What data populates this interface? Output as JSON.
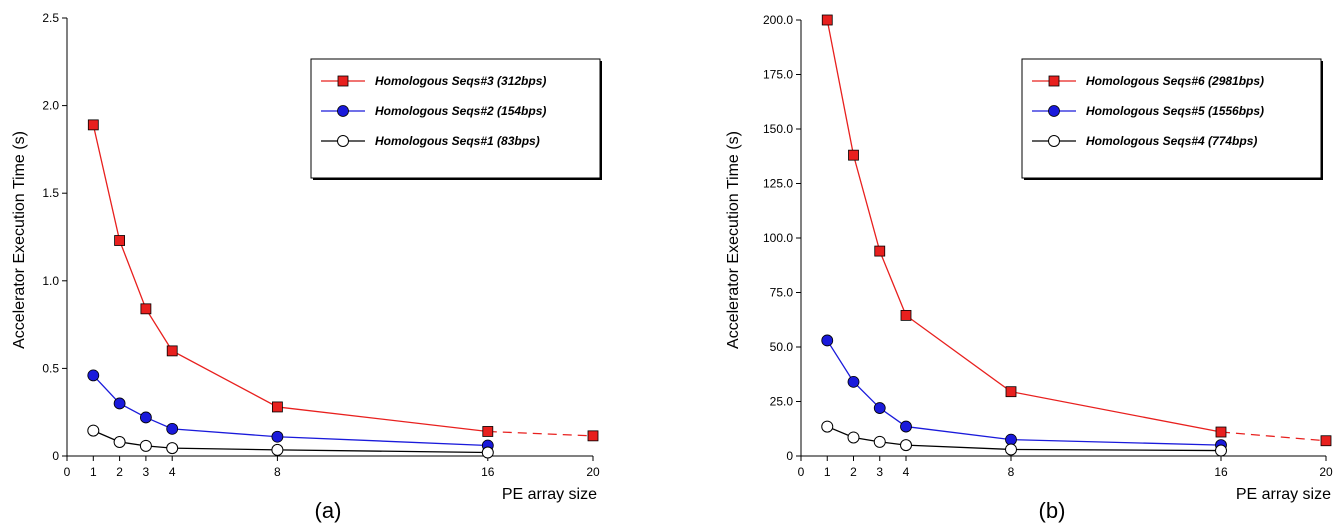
{
  "chart_data": [
    {
      "type": "line",
      "caption": "(a)",
      "xlabel": "PE array size",
      "ylabel": "Accelerator Execution Time (s)",
      "xlim": [
        0,
        20
      ],
      "ylim": [
        0,
        2.5
      ],
      "xticks": [
        0,
        1,
        2,
        3,
        4,
        8,
        16,
        20
      ],
      "xtick_labels": [
        "0",
        "1",
        "2",
        "3",
        "4",
        "8",
        "16",
        "20"
      ],
      "yticks": [
        0,
        0.5,
        1.0,
        1.5,
        2.0,
        2.5
      ],
      "ytick_labels": [
        "0",
        "0.5",
        "1.0",
        "1.5",
        "2.0",
        "2.5"
      ],
      "grid": false,
      "legend_position": "top-right",
      "series": [
        {
          "name": "Homologous Seqs#3 (312bps)",
          "color": "#e8201e",
          "marker": "square",
          "x": [
            1,
            2,
            3,
            4,
            8,
            16
          ],
          "y": [
            1.89,
            1.23,
            0.84,
            0.6,
            0.28,
            0.14
          ],
          "extrapolated": {
            "x": [
              16,
              20
            ],
            "y": [
              0.14,
              0.115
            ]
          }
        },
        {
          "name": "Homologous Seqs#2 (154bps)",
          "color": "#1a1adb",
          "marker": "circle",
          "x": [
            1,
            2,
            3,
            4,
            8,
            16
          ],
          "y": [
            0.46,
            0.3,
            0.22,
            0.155,
            0.11,
            0.06
          ]
        },
        {
          "name": "Homologous Seqs#1 (83bps)",
          "color": "#000000",
          "marker": "open-circle",
          "x": [
            1,
            2,
            3,
            4,
            8,
            16
          ],
          "y": [
            0.145,
            0.08,
            0.058,
            0.045,
            0.035,
            0.02
          ]
        }
      ]
    },
    {
      "type": "line",
      "caption": "(b)",
      "xlabel": "PE array size",
      "ylabel": "Accelerator Execution Time (s)",
      "xlim": [
        0,
        20
      ],
      "ylim": [
        0,
        200
      ],
      "xticks": [
        0,
        1,
        2,
        3,
        4,
        8,
        16,
        20
      ],
      "xtick_labels": [
        "0",
        "1",
        "2",
        "3",
        "4",
        "8",
        "16",
        "20"
      ],
      "yticks": [
        0,
        25,
        50,
        75,
        100,
        125,
        150,
        175,
        200
      ],
      "ytick_labels": [
        "0",
        "25.0",
        "50.0",
        "75.0",
        "100.0",
        "125.0",
        "150.0",
        "175.0",
        "200.0"
      ],
      "grid": false,
      "legend_position": "top-right",
      "series": [
        {
          "name": "Homologous Seqs#6 (2981bps)",
          "color": "#e8201e",
          "marker": "square",
          "x": [
            1,
            2,
            3,
            4,
            8,
            16
          ],
          "y": [
            200,
            138,
            94,
            64.5,
            29.5,
            11
          ],
          "extrapolated": {
            "x": [
              16,
              20
            ],
            "y": [
              11,
              7
            ]
          }
        },
        {
          "name": "Homologous Seqs#5 (1556bps)",
          "color": "#1a1adb",
          "marker": "circle",
          "x": [
            1,
            2,
            3,
            4,
            8,
            16
          ],
          "y": [
            53,
            34,
            22,
            13.5,
            7.5,
            5
          ]
        },
        {
          "name": "Homologous Seqs#4 (774bps)",
          "color": "#000000",
          "marker": "open-circle",
          "x": [
            1,
            2,
            3,
            4,
            8,
            16
          ],
          "y": [
            13.5,
            8.5,
            6.5,
            5,
            3,
            2.5
          ]
        }
      ]
    }
  ]
}
